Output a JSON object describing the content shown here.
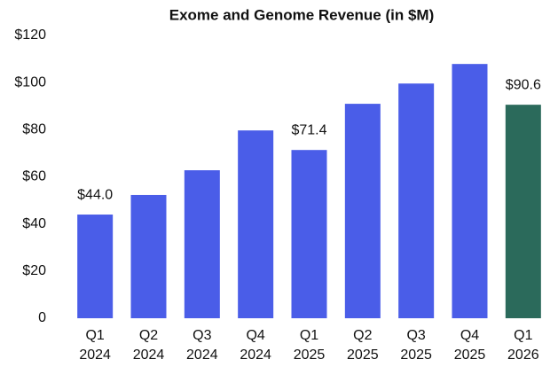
{
  "chart_data": {
    "type": "bar",
    "title": "Exome and Genome Revenue (in $M)",
    "categories": [
      "Q1 2024",
      "Q2 2024",
      "Q3 2024",
      "Q4 2024",
      "Q1 2025",
      "Q2 2025",
      "Q3 2025",
      "Q4 2025",
      "Q1 2026"
    ],
    "values": [
      44.0,
      52.3,
      62.8,
      79.7,
      71.4,
      91,
      99.6,
      107.9,
      90.6
    ],
    "value_labels": [
      "$44.0",
      null,
      null,
      null,
      "$71.4",
      null,
      null,
      null,
      "$90.6"
    ],
    "colors": [
      "#4a5de8",
      "#4a5de8",
      "#4a5de8",
      "#4a5de8",
      "#4a5de8",
      "#4a5de8",
      "#4a5de8",
      "#4a5de8",
      "#2b6a5b"
    ],
    "ylim": [
      0,
      120
    ],
    "yticks": [
      0,
      {
        "value": 20,
        "label": "$20"
      },
      {
        "value": 40,
        "label": "$40"
      },
      {
        "value": 60,
        "label": "$60"
      },
      {
        "value": 80,
        "label": "$80"
      },
      {
        "value": 100,
        "label": "$100"
      },
      {
        "value": 120,
        "label": "$120"
      }
    ],
    "grid": false
  }
}
